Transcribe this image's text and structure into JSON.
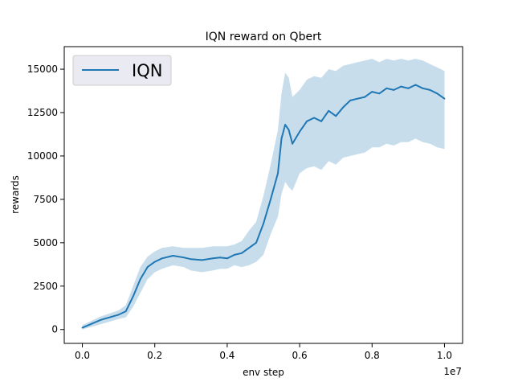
{
  "chart_data": {
    "type": "line",
    "title": "IQN reward on Qbert",
    "xlabel": "env step",
    "ylabel": "rewards",
    "x_offset_label": "1e7",
    "x_scale": 10000000,
    "xlim": [
      -0.05,
      1.05
    ],
    "ylim": [
      -800,
      16300
    ],
    "xticks": [
      0.0,
      0.2,
      0.4,
      0.6,
      0.8,
      1.0
    ],
    "xtick_labels": [
      "0.0",
      "0.2",
      "0.4",
      "0.6",
      "0.8",
      "1.0"
    ],
    "yticks": [
      0,
      2500,
      5000,
      7500,
      10000,
      12500,
      15000
    ],
    "ytick_labels": [
      "0",
      "2500",
      "5000",
      "7500",
      "10000",
      "12500",
      "15000"
    ],
    "grid": false,
    "legend_position": "top-left",
    "series": [
      {
        "name": "IQN",
        "color": "#1f77b4",
        "x": [
          0.0,
          0.05,
          0.1,
          0.12,
          0.14,
          0.16,
          0.18,
          0.2,
          0.22,
          0.25,
          0.28,
          0.3,
          0.33,
          0.36,
          0.38,
          0.4,
          0.42,
          0.44,
          0.46,
          0.48,
          0.5,
          0.52,
          0.54,
          0.55,
          0.56,
          0.57,
          0.58,
          0.6,
          0.62,
          0.64,
          0.66,
          0.68,
          0.7,
          0.72,
          0.74,
          0.76,
          0.78,
          0.8,
          0.82,
          0.84,
          0.86,
          0.88,
          0.9,
          0.92,
          0.94,
          0.96,
          0.98,
          1.0
        ],
        "y": [
          100,
          550,
          850,
          1050,
          1900,
          2900,
          3600,
          3900,
          4100,
          4250,
          4150,
          4050,
          4000,
          4100,
          4150,
          4100,
          4300,
          4400,
          4700,
          5000,
          6100,
          7500,
          9000,
          11000,
          11800,
          11500,
          10700,
          11400,
          12000,
          12200,
          12000,
          12600,
          12300,
          12800,
          13200,
          13300,
          13400,
          13700,
          13600,
          13900,
          13800,
          14000,
          13900,
          14100,
          13900,
          13800,
          13600,
          13300
        ],
        "lower": [
          0,
          300,
          600,
          700,
          1300,
          2100,
          2900,
          3300,
          3500,
          3700,
          3600,
          3400,
          3300,
          3400,
          3500,
          3500,
          3700,
          3600,
          3700,
          3900,
          4300,
          5500,
          6500,
          7800,
          8500,
          8200,
          8000,
          9000,
          9300,
          9400,
          9200,
          9700,
          9500,
          9900,
          10000,
          10100,
          10200,
          10500,
          10500,
          10700,
          10600,
          10800,
          10800,
          11000,
          10800,
          10700,
          10500,
          10400
        ],
        "upper": [
          250,
          750,
          1100,
          1400,
          2500,
          3600,
          4200,
          4500,
          4700,
          4800,
          4700,
          4700,
          4700,
          4800,
          4800,
          4800,
          4900,
          5100,
          5700,
          6200,
          7700,
          9500,
          11500,
          13600,
          14800,
          14500,
          13400,
          13800,
          14400,
          14600,
          14500,
          15000,
          14900,
          15200,
          15300,
          15400,
          15500,
          15600,
          15400,
          15600,
          15500,
          15600,
          15500,
          15600,
          15500,
          15300,
          15100,
          14900
        ]
      }
    ]
  }
}
